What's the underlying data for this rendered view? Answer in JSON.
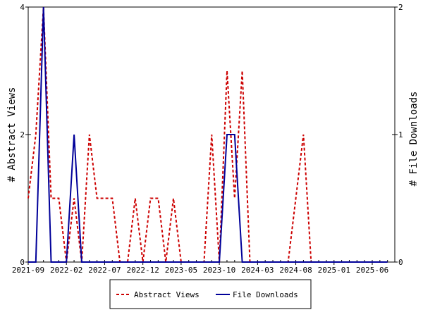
{
  "chart_data": {
    "type": "line",
    "x_ticks": [
      "2021-09",
      "2022-02",
      "2022-07",
      "2022-12",
      "2023-05",
      "2023-10",
      "2024-03",
      "2024-08",
      "2025-01",
      "2025-06"
    ],
    "y_left": {
      "label": "# Abstract Views",
      "ticks": [
        "0",
        "2",
        "4"
      ],
      "range": [
        0,
        4
      ]
    },
    "y_right": {
      "label": "# File Downloads",
      "ticks": [
        "0",
        "1",
        "2"
      ],
      "range": [
        0,
        2
      ]
    },
    "x_range": [
      "2021-09",
      "2025-08"
    ],
    "grid": false,
    "legend_position": "bottom",
    "series": [
      {
        "name": "Abstract Views",
        "axis": "left",
        "color": "#cc0000",
        "style": "dashed",
        "points": [
          [
            "2021-09",
            1
          ],
          [
            "2021-10",
            2
          ],
          [
            "2021-11",
            4
          ],
          [
            "2021-12",
            1
          ],
          [
            "2022-01",
            1
          ],
          [
            "2022-02",
            0
          ],
          [
            "2022-03",
            1
          ],
          [
            "2022-04",
            0
          ],
          [
            "2022-05",
            2
          ],
          [
            "2022-06",
            1
          ],
          [
            "2022-07",
            1
          ],
          [
            "2022-08",
            1
          ],
          [
            "2022-09",
            0
          ],
          [
            "2022-10",
            0
          ],
          [
            "2022-11",
            1
          ],
          [
            "2022-12",
            0
          ],
          [
            "2023-01",
            1
          ],
          [
            "2023-02",
            1
          ],
          [
            "2023-03",
            0
          ],
          [
            "2023-04",
            1
          ],
          [
            "2023-05",
            0
          ],
          [
            "2023-06",
            0
          ],
          [
            "2023-07",
            0
          ],
          [
            "2023-08",
            0
          ],
          [
            "2023-09",
            2
          ],
          [
            "2023-10",
            0
          ],
          [
            "2023-11",
            3
          ],
          [
            "2023-12",
            1
          ],
          [
            "2024-01",
            3
          ],
          [
            "2024-02",
            0
          ],
          [
            "2024-03",
            0
          ],
          [
            "2024-04",
            0
          ],
          [
            "2024-05",
            0
          ],
          [
            "2024-06",
            0
          ],
          [
            "2024-07",
            0
          ],
          [
            "2024-08",
            1
          ],
          [
            "2024-09",
            2
          ],
          [
            "2024-10",
            0
          ],
          [
            "2024-11",
            0
          ],
          [
            "2024-12",
            0
          ],
          [
            "2025-01",
            0
          ],
          [
            "2025-02",
            0
          ],
          [
            "2025-03",
            0
          ],
          [
            "2025-04",
            0
          ],
          [
            "2025-05",
            0
          ],
          [
            "2025-06",
            0
          ],
          [
            "2025-07",
            0
          ],
          [
            "2025-08",
            0
          ]
        ]
      },
      {
        "name": "File Downloads",
        "axis": "right",
        "color": "#000099",
        "style": "solid",
        "points": [
          [
            "2021-09",
            0
          ],
          [
            "2021-10",
            0
          ],
          [
            "2021-11",
            2
          ],
          [
            "2021-12",
            0
          ],
          [
            "2022-01",
            0
          ],
          [
            "2022-02",
            0
          ],
          [
            "2022-03",
            1
          ],
          [
            "2022-04",
            0
          ],
          [
            "2022-05",
            0
          ],
          [
            "2022-06",
            0
          ],
          [
            "2022-07",
            0
          ],
          [
            "2022-08",
            0
          ],
          [
            "2022-09",
            0
          ],
          [
            "2022-10",
            0
          ],
          [
            "2022-11",
            0
          ],
          [
            "2022-12",
            0
          ],
          [
            "2023-01",
            0
          ],
          [
            "2023-02",
            0
          ],
          [
            "2023-03",
            0
          ],
          [
            "2023-04",
            0
          ],
          [
            "2023-05",
            0
          ],
          [
            "2023-06",
            0
          ],
          [
            "2023-07",
            0
          ],
          [
            "2023-08",
            0
          ],
          [
            "2023-09",
            0
          ],
          [
            "2023-10",
            0
          ],
          [
            "2023-11",
            1
          ],
          [
            "2023-12",
            1
          ],
          [
            "2024-01",
            0
          ],
          [
            "2024-02",
            0
          ],
          [
            "2024-03",
            0
          ],
          [
            "2024-04",
            0
          ],
          [
            "2024-05",
            0
          ],
          [
            "2024-06",
            0
          ],
          [
            "2024-07",
            0
          ],
          [
            "2024-08",
            0
          ],
          [
            "2024-09",
            0
          ],
          [
            "2024-10",
            0
          ],
          [
            "2024-11",
            0
          ],
          [
            "2024-12",
            0
          ],
          [
            "2025-01",
            0
          ],
          [
            "2025-02",
            0
          ],
          [
            "2025-03",
            0
          ],
          [
            "2025-04",
            0
          ],
          [
            "2025-05",
            0
          ],
          [
            "2025-06",
            0
          ],
          [
            "2025-07",
            0
          ],
          [
            "2025-08",
            0
          ]
        ]
      }
    ]
  }
}
